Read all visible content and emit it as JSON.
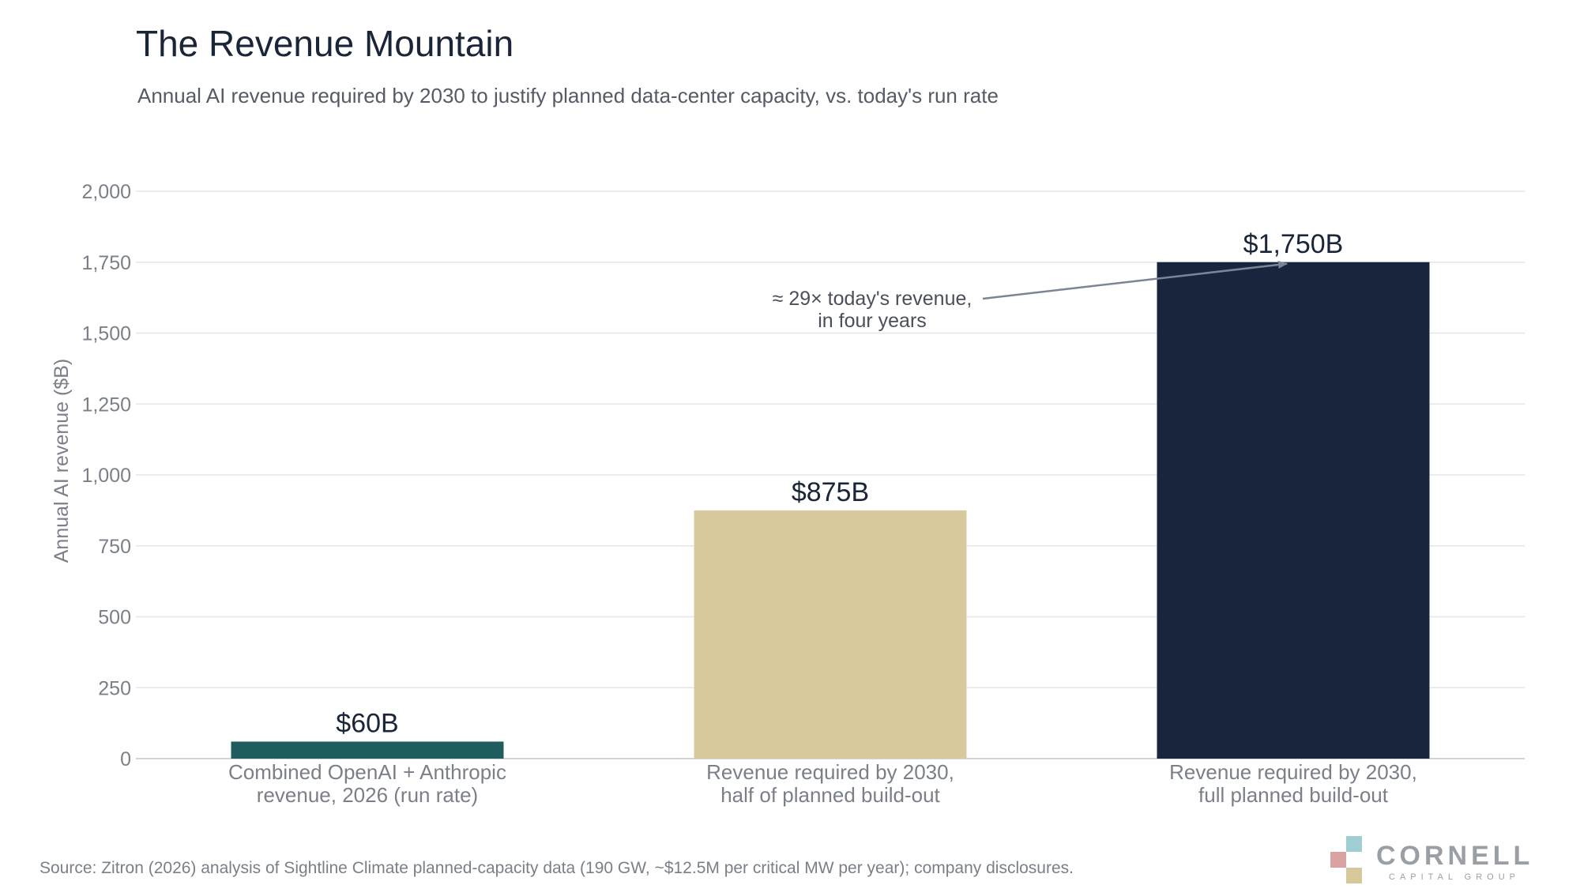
{
  "header": {
    "title": "The Revenue Mountain",
    "subtitle": "Annual AI revenue required by 2030 to justify planned data-center capacity, vs. today's run rate"
  },
  "footer": {
    "source": "Source: Zitron (2026) analysis of Sightline Climate planned-capacity data (190 GW, ~$12.5M per critical MW per year); company disclosures."
  },
  "logo": {
    "name": "CORNELL",
    "tagline": "CAPITAL GROUP",
    "colors": [
      "#9fcfd3",
      "#d9a3a3",
      "#d7c89c"
    ]
  },
  "chart_data": {
    "type": "bar",
    "title": "The Revenue Mountain",
    "ylabel": "Annual AI revenue ($B)",
    "xlabel": "",
    "ylim": [
      0,
      2000
    ],
    "yticks": [
      0,
      250,
      500,
      750,
      1000,
      1250,
      1500,
      1750,
      2000
    ],
    "ytick_labels": [
      "0",
      "250",
      "500",
      "750",
      "1,000",
      "1,250",
      "1,500",
      "1,750",
      "2,000"
    ],
    "grid": true,
    "categories": [
      [
        "Combined OpenAI + Anthropic",
        "revenue, 2026 (run rate)"
      ],
      [
        "Revenue required by 2030,",
        "half of planned build-out"
      ],
      [
        "Revenue required by 2030,",
        "full planned build-out"
      ]
    ],
    "values": [
      60,
      875,
      1750
    ],
    "value_labels": [
      "$60B",
      "$875B",
      "$1,750B"
    ],
    "colors": [
      "#1f5c5e",
      "#d8c99c",
      "#18253d"
    ],
    "annotation": {
      "lines": [
        "≈ 29× today's revenue,",
        "in four years"
      ],
      "points_to_bar": 2
    }
  }
}
